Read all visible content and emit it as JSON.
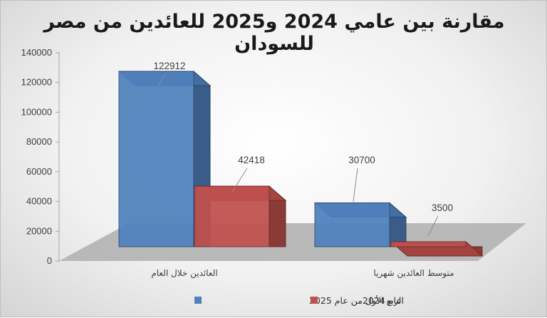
{
  "chart_data": {
    "type": "bar",
    "title": "مقارنة بين عامي 2024 و2025 للعائدين من مصر للسودان",
    "categories": [
      "العائدين خلال العام",
      "متوسط العائدين شهريا"
    ],
    "series": [
      {
        "name": "الربع الأول من عام 2025",
        "values": [
          122912,
          30700
        ],
        "color": "#4f81bd"
      },
      {
        "name": "عام 2024",
        "values": [
          42418,
          3500
        ],
        "color": "#c0504d"
      }
    ],
    "ylim": [
      0,
      140000
    ],
    "yticks": [
      "0",
      "20000",
      "40000",
      "60000",
      "80000",
      "100000",
      "120000",
      "140000"
    ],
    "data_labels": [
      [
        "122912",
        "30700"
      ],
      [
        "42418",
        "3500"
      ]
    ],
    "grid": false,
    "legend_position": "bottom",
    "style": "3d-clustered-column"
  }
}
